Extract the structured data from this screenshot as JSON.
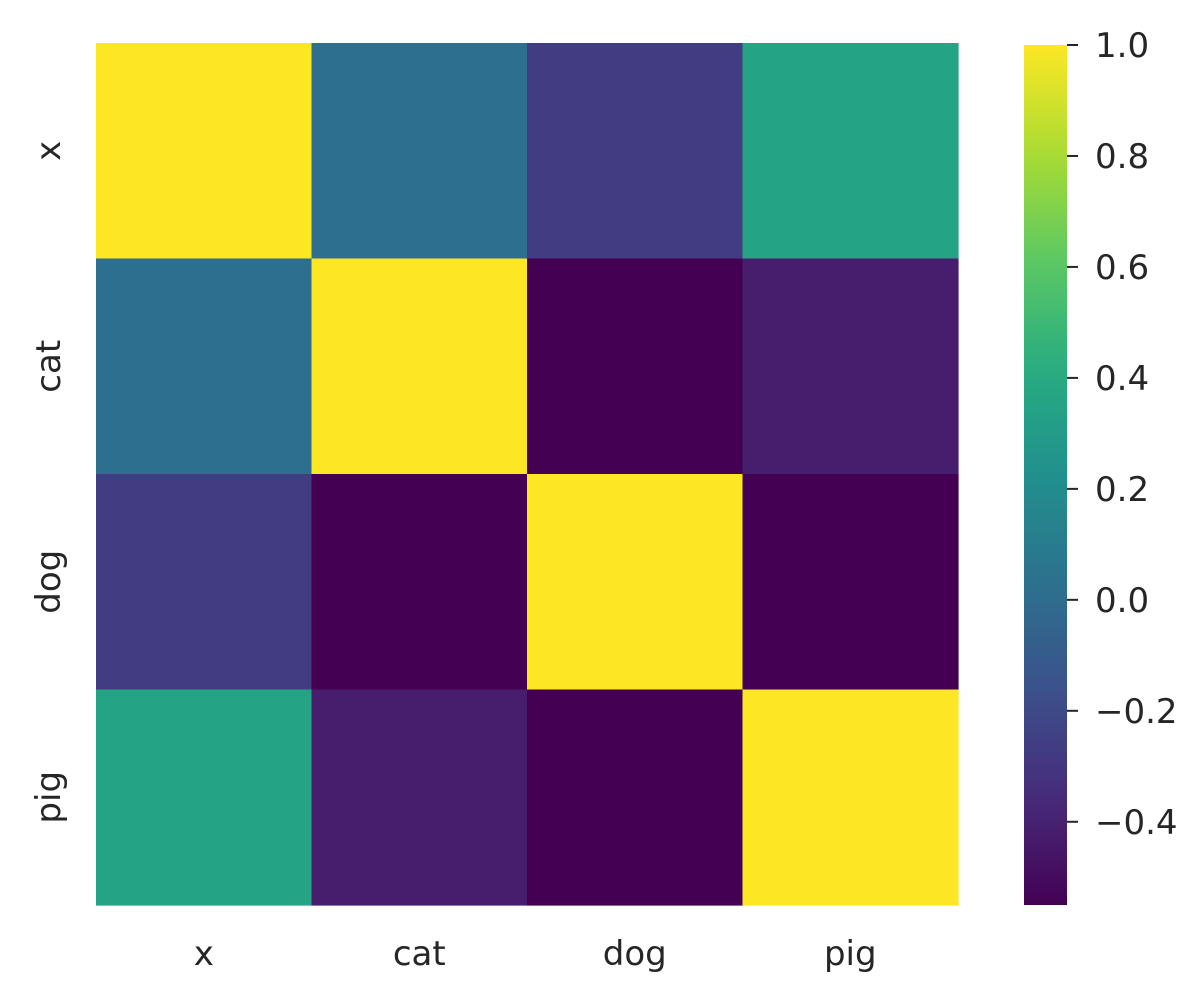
{
  "chart_data": {
    "type": "heatmap",
    "title": "",
    "xlabel": "",
    "ylabel": "",
    "x_categories": [
      "x",
      "cat",
      "dog",
      "pig"
    ],
    "y_categories": [
      "x",
      "cat",
      "dog",
      "pig"
    ],
    "values": [
      [
        1.0,
        0.02,
        -0.27,
        0.36
      ],
      [
        0.02,
        1.0,
        -0.55,
        -0.42
      ],
      [
        -0.27,
        -0.55,
        1.0,
        -0.55
      ],
      [
        0.36,
        -0.42,
        -0.55,
        1.0
      ]
    ],
    "colorbar": {
      "colormap": "viridis",
      "range": [
        -0.55,
        1.0
      ],
      "ticks": [
        1.0,
        0.8,
        0.6,
        0.4,
        0.2,
        0.0,
        -0.2,
        -0.4
      ],
      "tick_labels": [
        "1.0",
        "0.8",
        "0.6",
        "0.4",
        "0.2",
        "0.0",
        "−0.2",
        "−0.4"
      ]
    },
    "grid": false,
    "legend": "colorbar-right"
  }
}
